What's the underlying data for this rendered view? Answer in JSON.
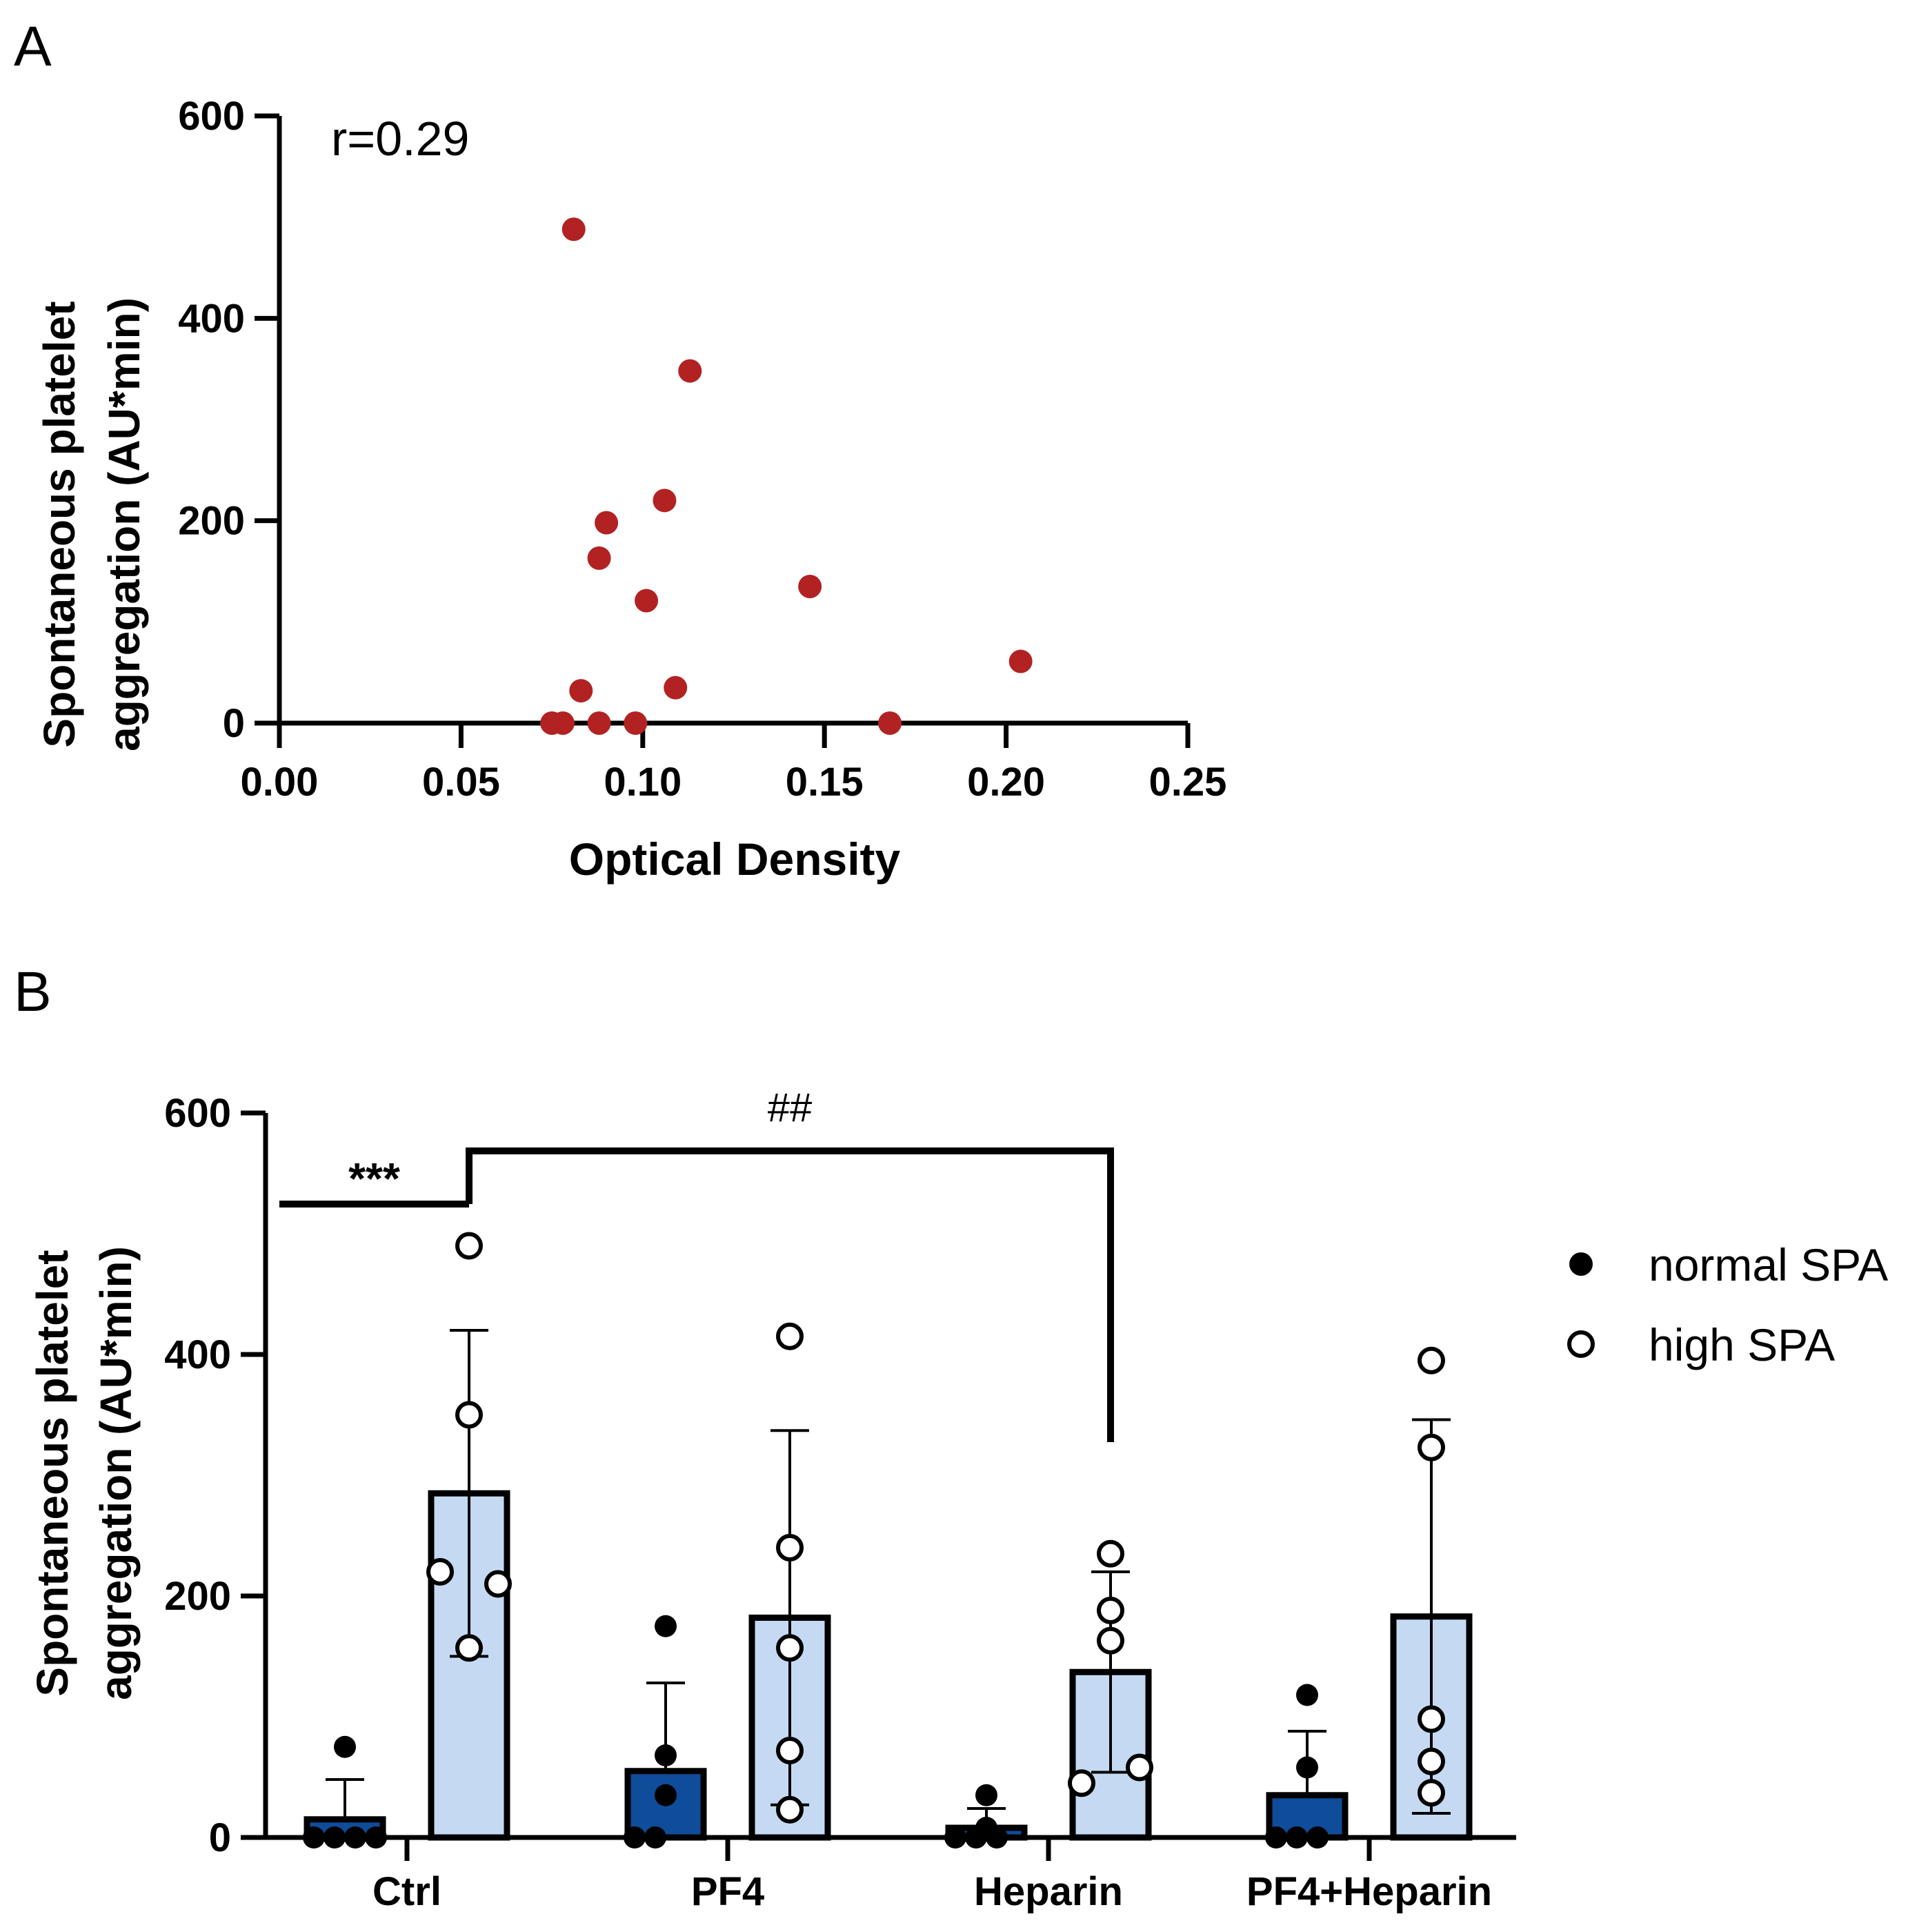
{
  "panel_a_label": "A",
  "panel_b_label": "B",
  "colors": {
    "scatter_point": "#b22222",
    "normal_bar": "#0f4c9a",
    "high_bar": "#c5daf2",
    "axis": "#000000"
  },
  "chart_data": [
    {
      "type": "scatter",
      "panel": "A",
      "xlabel": "Optical Density",
      "ylabel_line1": "Spontaneous platelet",
      "ylabel_line2": "aggregation (AU*min)",
      "annotation": "r=0.29",
      "xlim": [
        0,
        0.25
      ],
      "ylim": [
        0,
        600
      ],
      "x_ticks": [
        0,
        0.05,
        0.1,
        0.15,
        0.2,
        0.25
      ],
      "x_tick_labels": [
        "0.00",
        "0.05",
        "0.10",
        "0.15",
        "0.20",
        "0.25"
      ],
      "y_ticks": [
        0,
        200,
        400,
        600
      ],
      "y_tick_labels": [
        "0",
        "200",
        "400",
        "600"
      ],
      "points": [
        {
          "x": 0.081,
          "y": 488
        },
        {
          "x": 0.113,
          "y": 348
        },
        {
          "x": 0.106,
          "y": 220
        },
        {
          "x": 0.09,
          "y": 198
        },
        {
          "x": 0.088,
          "y": 163
        },
        {
          "x": 0.146,
          "y": 135
        },
        {
          "x": 0.101,
          "y": 121
        },
        {
          "x": 0.204,
          "y": 61
        },
        {
          "x": 0.109,
          "y": 35
        },
        {
          "x": 0.083,
          "y": 32
        },
        {
          "x": 0.075,
          "y": 0
        },
        {
          "x": 0.078,
          "y": 0
        },
        {
          "x": 0.088,
          "y": 0
        },
        {
          "x": 0.098,
          "y": 0
        },
        {
          "x": 0.168,
          "y": 0
        }
      ]
    },
    {
      "type": "bar",
      "panel": "B",
      "ylabel_line1": "Spontaneous platelet",
      "ylabel_line2": "aggregation (AU*min)",
      "ylim": [
        0,
        600
      ],
      "y_ticks": [
        0,
        200,
        400,
        600
      ],
      "y_tick_labels": [
        "0",
        "200",
        "400",
        "600"
      ],
      "categories": [
        "Ctrl",
        "PF4",
        "Heparin",
        "PF4+Heparin"
      ],
      "series": [
        {
          "name": "normal SPA",
          "values": [
            15,
            55,
            8,
            35
          ],
          "sd": [
            33,
            73,
            16,
            53
          ],
          "points": [
            [
              75,
              0,
              0,
              0,
              0
            ],
            [
              175,
              68,
              35,
              0,
              0
            ],
            [
              35,
              8,
              0,
              0,
              0
            ],
            [
              118,
              58,
              0,
              0,
              0
            ]
          ]
        },
        {
          "name": "high SPA",
          "values": [
            285,
            182,
            137,
            183
          ],
          "sd": [
            135,
            155,
            83,
            163
          ],
          "points": [
            [
              490,
              350,
              220,
              210,
              157
            ],
            [
              415,
              240,
              157,
              72,
              23
            ],
            [
              235,
              188,
              163,
              58,
              45
            ],
            [
              395,
              323,
              98,
              63,
              37
            ]
          ]
        }
      ],
      "significance": [
        {
          "label": "***",
          "from": "Ctrl normal SPA",
          "to": "Ctrl high SPA"
        },
        {
          "label": "##",
          "from": "Ctrl high SPA",
          "to": "Heparin high SPA"
        }
      ],
      "legend": [
        {
          "label": "normal SPA",
          "marker": "filled-circle"
        },
        {
          "label": "high SPA",
          "marker": "open-circle"
        }
      ],
      "legend_position": "right"
    }
  ]
}
